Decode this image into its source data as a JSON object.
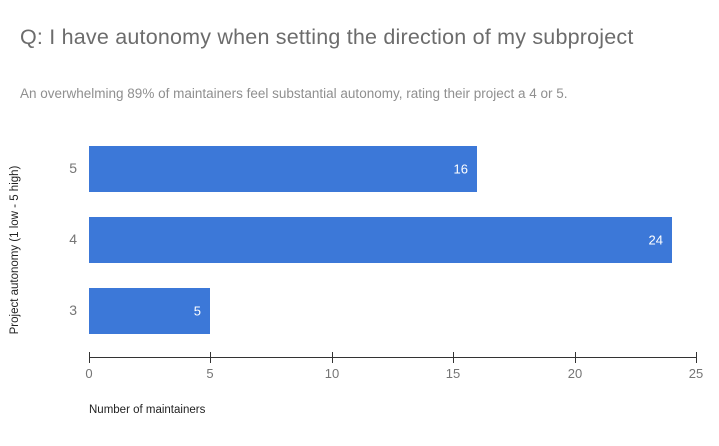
{
  "header": {
    "title": "Q: I have autonomy when setting the direction of my subproject",
    "subtitle": "An overwhelming 89% of maintainers feel substantial autonomy, rating their project a 4 or 5."
  },
  "chart_data": {
    "type": "bar",
    "orientation": "horizontal",
    "title": "Q: I have autonomy when setting the direction of my subproject",
    "subtitle": "An overwhelming 89% of maintainers feel substantial autonomy, rating their project a 4 or 5.",
    "categories": [
      "5",
      "4",
      "3"
    ],
    "values": [
      16,
      24,
      5
    ],
    "value_labels": [
      "16",
      "24",
      "5"
    ],
    "xlabel": "Number of maintainers",
    "ylabel": "Project autonomy (1 low - 5 high)",
    "xlim": [
      0,
      25
    ],
    "xticks": [
      "0",
      "5",
      "10",
      "15",
      "20",
      "25"
    ],
    "legend": "none",
    "grid": false,
    "colors": {
      "bar": "#3c78d8",
      "bar_value_text": "#ffffff",
      "axis_line": "#333333",
      "tick_label": "#757575",
      "category_label": "#757575",
      "title_text": "#6c6c6c",
      "subtitle_text": "#8f8f8f",
      "axis_title_text": "#222222",
      "background": "#ffffff"
    }
  }
}
